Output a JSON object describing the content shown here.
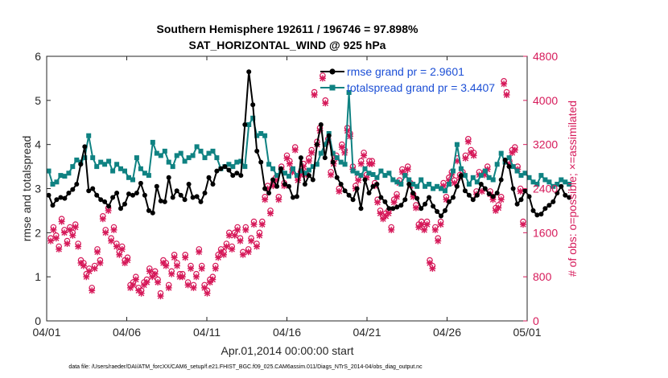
{
  "chart_data": {
    "type": "line",
    "title": "Southern Hemisphere 192611 / 196746 = 97.898%",
    "subtitle": "SAT_HORIZONTAL_WIND @ 925 hPa",
    "xlabel": "Apr.01,2014 00:00:00 start",
    "ylabel": "rmse and totalspread",
    "y2label": "# of obs: o=possible; ×=assimilated",
    "footer": "data file: /Users/raeder/DAI/ATM_forcXX/CAM6_setup/f.e21.FHIST_BGC.f09_025.CAM6assim.011/Diags_NTrS_2014-04/obs_diag_output.nc",
    "xlim": [
      0,
      30
    ],
    "ylim": [
      0,
      6
    ],
    "y2lim": [
      0,
      4800
    ],
    "xticks": [
      0,
      5,
      10,
      15,
      20,
      25,
      30
    ],
    "xticklabels": [
      "04/01",
      "04/06",
      "04/11",
      "04/16",
      "04/21",
      "04/26",
      "05/01"
    ],
    "yticks": [
      0,
      1,
      2,
      3,
      4,
      5,
      6
    ],
    "yticklabels": [
      "0",
      "1",
      "2",
      "3",
      "4",
      "5",
      "6"
    ],
    "y2ticks": [
      0,
      800,
      1600,
      2400,
      3200,
      4000,
      4800
    ],
    "y2ticklabels": [
      "0",
      "800",
      "1600",
      "2400",
      "3200",
      "4000",
      "4800"
    ],
    "legend_position": "top-right",
    "colors": {
      "rmse": "#000000",
      "spread": "#0f8282",
      "obs": "#d61a5a",
      "legend_text": "#1c4fd6"
    },
    "series": [
      {
        "name": "rmse grand pr = 2.9601",
        "key": "rmse",
        "values": [
          2.85,
          2.62,
          2.75,
          2.8,
          2.78,
          2.9,
          2.98,
          3.1,
          3.55,
          3.95,
          2.95,
          3.0,
          2.85,
          2.75,
          2.7,
          2.6,
          2.8,
          2.9,
          2.55,
          2.65,
          2.88,
          2.85,
          2.9,
          3.12,
          2.85,
          2.5,
          2.45,
          3.05,
          2.72,
          2.7,
          3.25,
          2.8,
          2.95,
          2.85,
          2.75,
          3.1,
          2.8,
          2.82,
          2.7,
          2.9,
          3.25,
          3.1,
          3.4,
          3.45,
          3.5,
          3.42,
          3.3,
          3.35,
          3.3,
          4.45,
          5.65,
          4.9,
          3.85,
          3.6,
          3.0,
          2.9,
          3.2,
          3.05,
          3.45,
          3.1,
          3.05,
          2.8,
          2.82,
          3.7,
          3.1,
          3.3,
          3.2,
          4.0,
          4.45,
          3.7,
          4.2,
          3.6,
          3.25,
          3.1,
          2.95,
          2.85,
          2.75,
          3.0,
          2.55,
          3.2,
          2.9,
          3.05,
          3.1,
          2.8,
          2.7,
          2.55,
          2.55,
          2.58,
          2.62,
          2.75,
          3.1,
          2.9,
          2.78,
          2.55,
          2.65,
          2.8,
          2.6,
          2.48,
          2.38,
          2.5,
          2.7,
          2.8,
          3.05,
          3.3,
          2.95,
          2.85,
          2.75,
          2.85,
          3.1,
          3.0,
          2.88,
          2.82,
          2.9,
          3.2,
          3.65,
          3.5,
          3.0,
          2.65,
          2.75,
          2.95,
          2.82,
          2.5,
          2.4,
          2.42,
          2.55,
          2.62,
          2.7,
          2.9,
          3.05,
          2.85,
          2.8
        ]
      },
      {
        "name": "totalspread grand pr = 3.4407",
        "key": "spread",
        "values": [
          3.4,
          3.1,
          3.15,
          3.3,
          3.28,
          3.35,
          3.5,
          3.65,
          3.6,
          3.7,
          4.2,
          3.7,
          3.5,
          3.6,
          3.55,
          3.62,
          3.4,
          3.55,
          3.45,
          3.4,
          3.25,
          3.2,
          3.7,
          3.45,
          3.35,
          3.3,
          4.05,
          3.8,
          3.75,
          3.85,
          3.6,
          3.5,
          3.75,
          3.8,
          3.62,
          3.7,
          3.75,
          3.95,
          3.85,
          3.7,
          3.8,
          3.85,
          3.7,
          3.45,
          3.5,
          3.55,
          3.5,
          3.6,
          3.62,
          3.5,
          4.45,
          4.6,
          4.2,
          4.25,
          4.2,
          3.55,
          3.45,
          3.3,
          3.4,
          3.35,
          3.28,
          3.45,
          3.3,
          3.4,
          3.35,
          3.42,
          3.5,
          3.55,
          3.8,
          4.0,
          4.25,
          3.8,
          3.7,
          3.6,
          3.55,
          5.18,
          3.4,
          3.35,
          3.3,
          3.45,
          3.35,
          3.32,
          3.25,
          3.4,
          3.3,
          3.35,
          3.2,
          3.15,
          3.1,
          3.3,
          3.2,
          3.1,
          3.05,
          3.2,
          3.05,
          3.1,
          3.0,
          3.05,
          3.0,
          2.95,
          3.1,
          3.4,
          4.0,
          3.45,
          3.3,
          3.1,
          3.25,
          3.15,
          3.3,
          3.4,
          3.25,
          3.2,
          3.55,
          3.8,
          3.6,
          3.7,
          3.5,
          3.4,
          3.3,
          3.35,
          3.25,
          3.15,
          3.1,
          3.3,
          3.2,
          3.15,
          3.05,
          3.1,
          3.2,
          3.15,
          3.1
        ]
      },
      {
        "name": "obs possible",
        "key": "obs_possible",
        "values": [
          1500,
          1700,
          1550,
          1350,
          1850,
          1650,
          1450,
          1700,
          1600,
          1750,
          1400,
          1100,
          1050,
          850,
          950,
          600,
          1000,
          1300,
          1100,
          1900,
          1650,
          2050,
          1500,
          1700,
          1400,
          1250,
          1350,
          1100,
          1150,
          650,
          700,
          800,
          600,
          550,
          700,
          750,
          950,
          850,
          900,
          750,
          500,
          1100,
          1050,
          650,
          900,
          1200,
          1050,
          850,
          850,
          1200,
          700,
          1000,
          650,
          850,
          1300,
          1000,
          650,
          550,
          750,
          800,
          1000,
          1200,
          1300,
          1250,
          1400,
          1600,
          1350,
          1600,
          1700,
          1500,
          1250,
          1700,
          1300,
          1500,
          1800,
          1400,
          1600,
          1800,
          2250,
          2450,
          2000,
          2500,
          2600,
          2250,
          2800,
          2500,
          3000,
          2900,
          2750,
          3150,
          2600,
          2700,
          2850,
          2700,
          2950,
          3100,
          4150,
          3250,
          3500,
          4450,
          4000,
          3300,
          2700,
          2900,
          3000,
          2400,
          3200,
          3100,
          3500,
          3400,
          2800,
          2450,
          2600,
          2900,
          3050,
          2650,
          2900,
          2900,
          2500,
          2200,
          2000,
          1900,
          1950,
          2000,
          1700,
          2200,
          2300,
          2550,
          2750,
          2700,
          2800,
          2500,
          2300,
          2100,
          1750,
          1800,
          1700,
          1800,
          1100,
          1000,
          1700,
          1500,
          1800,
          2500,
          2250,
          2600,
          2700,
          2550,
          2950,
          2650,
          2700,
          3000,
          3300,
          3100,
          3050,
          2350,
          2700,
          2400,
          2700,
          2800,
          2350,
          2250,
          2050,
          2100,
          2250,
          4350,
          4150,
          2900,
          3100,
          3150,
          2800,
          2400,
          1800
        ]
      },
      {
        "name": "obs assimilated",
        "key": "obs_assimilated",
        "values": [
          1450,
          1650,
          1500,
          1300,
          1800,
          1600,
          1400,
          1650,
          1550,
          1700,
          1350,
          1050,
          1000,
          800,
          900,
          550,
          950,
          1250,
          1050,
          1850,
          1600,
          2000,
          1450,
          1650,
          1350,
          1200,
          1300,
          1050,
          1100,
          600,
          650,
          750,
          550,
          500,
          650,
          700,
          900,
          800,
          850,
          700,
          450,
          1050,
          1000,
          600,
          850,
          1150,
          1000,
          800,
          800,
          1150,
          650,
          950,
          600,
          800,
          1250,
          950,
          600,
          500,
          700,
          750,
          950,
          1150,
          1250,
          1200,
          1350,
          1550,
          1300,
          1550,
          1650,
          1450,
          1200,
          1650,
          1250,
          1450,
          1750,
          1350,
          1550,
          1750,
          2200,
          2400,
          1950,
          2450,
          2550,
          2200,
          2750,
          2450,
          2950,
          2850,
          2700,
          3100,
          2550,
          2650,
          2800,
          2650,
          2900,
          3050,
          4100,
          3200,
          3450,
          4400,
          3950,
          3250,
          2650,
          2850,
          2950,
          2350,
          3150,
          3050,
          3450,
          3350,
          2750,
          2400,
          2550,
          2850,
          3000,
          2600,
          2850,
          2850,
          2450,
          2150,
          1950,
          1850,
          1900,
          1950,
          1650,
          2150,
          2250,
          2500,
          2700,
          2650,
          2750,
          2450,
          2250,
          2050,
          1700,
          1750,
          1650,
          1750,
          1050,
          950,
          1650,
          1450,
          1750,
          2450,
          2200,
          2550,
          2650,
          2500,
          2900,
          2600,
          2650,
          2950,
          3250,
          3050,
          3000,
          2300,
          2650,
          2350,
          2650,
          2750,
          2300,
          2200,
          2000,
          2050,
          2200,
          4300,
          4100,
          2850,
          3050,
          3100,
          2750,
          2350,
          1750
        ]
      }
    ]
  }
}
